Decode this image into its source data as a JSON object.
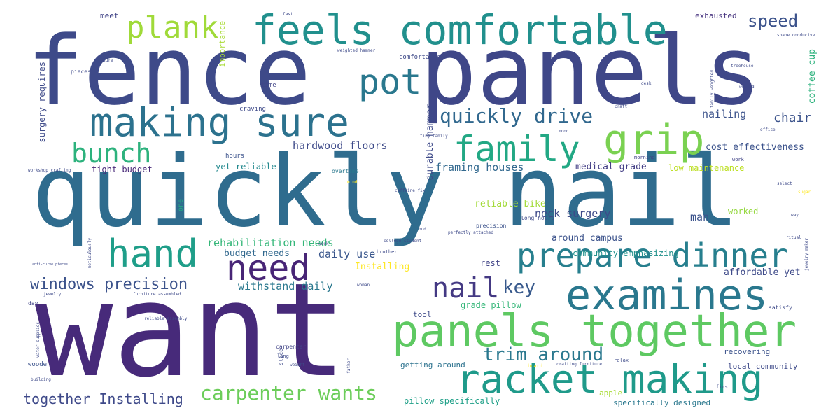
{
  "words": [
    {
      "text": "want",
      "color": "#472a7a"
    },
    {
      "text": "fence",
      "color": "#3e4a89"
    },
    {
      "text": "panels",
      "color": "#3f4788"
    },
    {
      "text": "quickly nail",
      "color": "#2f6c8e"
    },
    {
      "text": "feels comfortable",
      "color": "#21908d"
    },
    {
      "text": "racket making",
      "color": "#1f9a8a"
    },
    {
      "text": "panels together",
      "color": "#5ec962"
    },
    {
      "text": "examines",
      "color": "#2a788e"
    },
    {
      "text": "prepare dinner",
      "color": "#277f8e"
    },
    {
      "text": "making sure",
      "color": "#2c728e"
    },
    {
      "text": "hand",
      "color": "#1f9e89"
    },
    {
      "text": "need",
      "color": "#482576"
    },
    {
      "text": "grip",
      "color": "#7ad151"
    },
    {
      "text": "family",
      "color": "#22a884"
    },
    {
      "text": "pot",
      "color": "#2a788e"
    },
    {
      "text": "plank",
      "color": "#a0da39"
    },
    {
      "text": "bunch",
      "color": "#2db27d"
    },
    {
      "text": "nail",
      "color": "#443983"
    },
    {
      "text": "key",
      "color": "#38598c"
    },
    {
      "text": "quickly drive",
      "color": "#31688e"
    },
    {
      "text": "windows precision",
      "color": "#3b528b"
    },
    {
      "text": "carpenter wants",
      "color": "#6ccd5a"
    },
    {
      "text": "trim around",
      "color": "#2a788e"
    },
    {
      "text": "speed",
      "color": "#3b528b"
    },
    {
      "text": "together Installing",
      "color": "#3e4989"
    },
    {
      "text": "chair",
      "color": "#3b528b"
    },
    {
      "text": "hardwood floors",
      "color": "#3e4a89"
    },
    {
      "text": "framing houses",
      "color": "#31688e"
    },
    {
      "text": "tight budget",
      "color": "#482878"
    },
    {
      "text": "yet reliable",
      "color": "#23898e"
    },
    {
      "text": "rehabilitation needs",
      "color": "#35b779"
    },
    {
      "text": "withstand daily",
      "color": "#2a788e"
    },
    {
      "text": "daily use",
      "color": "#39568c"
    },
    {
      "text": "budget needs",
      "color": "#31688e"
    },
    {
      "text": "Installing",
      "color": "#fde725"
    },
    {
      "text": "neck surgery",
      "color": "#3e4a89"
    },
    {
      "text": "reliable bike",
      "color": "#a2da37"
    },
    {
      "text": "man",
      "color": "#3b528b"
    },
    {
      "text": "worked",
      "color": "#95d840"
    },
    {
      "text": "around campus",
      "color": "#3b528b"
    },
    {
      "text": "community emphasizing",
      "color": "#21918c"
    },
    {
      "text": "affordable yet",
      "color": "#3e4a89"
    },
    {
      "text": "rest",
      "color": "#414487"
    },
    {
      "text": "medical grade",
      "color": "#433e85"
    },
    {
      "text": "low maintenance",
      "color": "#bddf26"
    },
    {
      "text": "cost effectiveness",
      "color": "#3b528b"
    },
    {
      "text": "nailing",
      "color": "#3b528b"
    },
    {
      "text": "exhausted",
      "color": "#46327e"
    },
    {
      "text": "coffee cup",
      "color": "#2db27d"
    },
    {
      "text": "surgery requires",
      "color": "#3e4a89"
    },
    {
      "text": "durable hammer",
      "color": "#3e4a89"
    },
    {
      "text": "importance",
      "color": "#a8db34"
    },
    {
      "text": "meet",
      "color": "#414487"
    },
    {
      "text": "hours",
      "color": "#3b528b"
    },
    {
      "text": "craving",
      "color": "#3e4a89"
    },
    {
      "text": "time",
      "color": "#414487"
    },
    {
      "text": "comfortable",
      "color": "#3e4a89"
    },
    {
      "text": "pieces",
      "color": "#3e4a89"
    },
    {
      "text": "overtime",
      "color": "#2a788e"
    },
    {
      "text": "one",
      "color": "#23a983"
    },
    {
      "text": "long hours",
      "color": "#3e4a89"
    },
    {
      "text": "precision",
      "color": "#3b528b"
    },
    {
      "text": "grade pillow",
      "color": "#35b779"
    },
    {
      "text": "tool",
      "color": "#3e4a89"
    },
    {
      "text": "getting around",
      "color": "#2c728e"
    },
    {
      "text": "pillow specifically",
      "color": "#1fa088"
    },
    {
      "text": "apple",
      "color": "#a8db34"
    },
    {
      "text": "specifically designed",
      "color": "#2a788e"
    },
    {
      "text": "recovering",
      "color": "#3b528b"
    },
    {
      "text": "local community",
      "color": "#3e4a89"
    },
    {
      "text": "wooden",
      "color": "#3b528b"
    },
    {
      "text": "day",
      "color": "#414487"
    },
    {
      "text": "carpenter",
      "color": "#414487"
    },
    {
      "text": "slice",
      "color": "#3e4a89"
    },
    {
      "text": "long",
      "color": "#3e4a89"
    },
    {
      "text": "week",
      "color": "#414487"
    },
    {
      "text": "satisfy",
      "color": "#3e4a89"
    },
    {
      "text": "relax",
      "color": "#3e4a89"
    },
    {
      "text": "morning",
      "color": "#414487"
    },
    {
      "text": "work",
      "color": "#414487"
    },
    {
      "text": "brother",
      "color": "#3e4a89"
    },
    {
      "text": "first",
      "color": "#3e4a89"
    },
    {
      "text": "board",
      "color": "#fde725"
    },
    {
      "text": "crafting furniture",
      "color": "#3e4a89"
    },
    {
      "text": "perfectly attached",
      "color": "#3e4a89"
    },
    {
      "text": "college student",
      "color": "#3e4a89"
    },
    {
      "text": "bud",
      "color": "#3e4a89"
    },
    {
      "text": "caffeine fix",
      "color": "#3e4a89"
    },
    {
      "text": "workshop crafting",
      "color": "#3e4a89"
    },
    {
      "text": "reliable assembly",
      "color": "#3e4a89"
    },
    {
      "text": "furniture assembled",
      "color": "#3e4a89"
    },
    {
      "text": "jewelry",
      "color": "#3e4a89"
    },
    {
      "text": "meticulously",
      "color": "#3e4a89"
    },
    {
      "text": "anti-curve pieces",
      "color": "#3e4a89"
    },
    {
      "text": "water supplies",
      "color": "#3e4a89"
    },
    {
      "text": "building",
      "color": "#3e4a89"
    },
    {
      "text": "weighted hammer",
      "color": "#3e4a89"
    },
    {
      "text": "ensure",
      "color": "#3e4a89"
    },
    {
      "text": "fast",
      "color": "#3e4a89"
    },
    {
      "text": "tiny family",
      "color": "#3e4a89"
    },
    {
      "text": "office",
      "color": "#3e4a89"
    },
    {
      "text": "desk",
      "color": "#3e4a89"
    },
    {
      "text": "craft",
      "color": "#3e4a89"
    },
    {
      "text": "treehouse",
      "color": "#3e4a89"
    },
    {
      "text": "family weighted",
      "color": "#3e4a89"
    },
    {
      "text": "shape conducive",
      "color": "#3e4a89"
    },
    {
      "text": "worked",
      "color": "#3e4a89"
    },
    {
      "text": "mood",
      "color": "#3e4a89"
    },
    {
      "text": "select",
      "color": "#3e4a89"
    },
    {
      "text": "sugar",
      "color": "#fde725"
    },
    {
      "text": "way",
      "color": "#3e4a89"
    },
    {
      "text": "ritual",
      "color": "#3e4a89"
    },
    {
      "text": "jewelry maker",
      "color": "#3e4a89"
    },
    {
      "text": "woman",
      "color": "#3e4a89"
    },
    {
      "text": "weight",
      "color": "#3e4a89"
    },
    {
      "text": "father",
      "color": "#3e4a89"
    },
    {
      "text": "mind",
      "color": "#fde725"
    }
  ]
}
